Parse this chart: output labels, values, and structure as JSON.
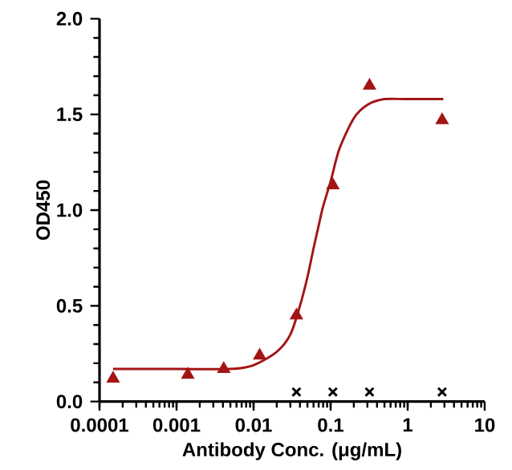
{
  "chart_data": {
    "type": "scatter",
    "xlabel": "Antibody Conc. (μg/mL)",
    "ylabel": "OD450",
    "log": "x",
    "xlim": [
      0.0001,
      10
    ],
    "xticks": [
      0.0001,
      0.001,
      0.01,
      0.1,
      1,
      10
    ],
    "ylim": [
      0,
      2
    ],
    "yticks": [
      {
        "value": 0,
        "label": "0.0"
      },
      0.5,
      {
        "value": 1,
        "label": "1.0"
      },
      1.5,
      {
        "value": 2,
        "label": "2.0"
      }
    ],
    "grid": false,
    "series": [
      {
        "marker": "triangle",
        "color": "#a31515",
        "x": [
          0.00015,
          0.0014,
          0.0041,
          0.012,
          0.036,
          0.107,
          0.32,
          2.8
        ],
        "values": [
          0.12,
          0.14,
          0.17,
          0.24,
          0.45,
          1.13,
          1.65,
          1.47
        ]
      },
      {
        "type": "line",
        "marker": "none",
        "color": "#a31515",
        "x": [
          0.00015,
          0.001,
          0.005,
          0.01,
          0.02,
          0.03,
          0.04,
          0.05,
          0.06,
          0.07,
          0.08,
          0.1,
          0.13,
          0.2,
          0.3,
          0.5,
          1,
          2.9
        ],
        "values": [
          0.17,
          0.17,
          0.17,
          0.19,
          0.26,
          0.35,
          0.5,
          0.65,
          0.8,
          0.92,
          1.02,
          1.15,
          1.32,
          1.48,
          1.55,
          1.58,
          1.58,
          1.58
        ]
      },
      {
        "type": "scatter",
        "marker": "cross",
        "color": "#000000",
        "x": [
          0.036,
          0.107,
          0.32,
          2.8
        ],
        "values": [
          0.05,
          0.05,
          0.05,
          0.05
        ]
      }
    ]
  }
}
